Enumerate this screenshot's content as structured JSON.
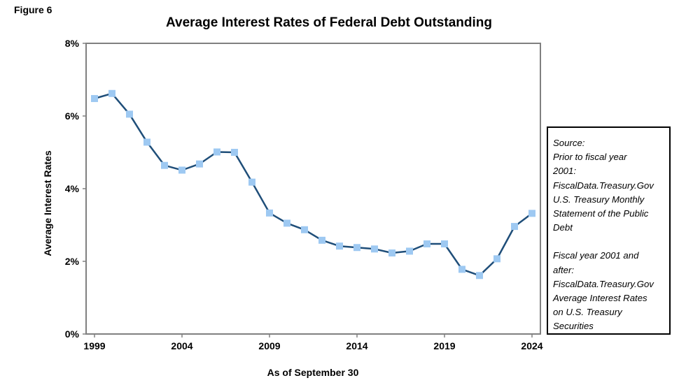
{
  "figure_label": "Figure 6",
  "source_box": {
    "lines_1": [
      "Source:",
      "Prior  to  fiscal year",
      "2001:",
      "FiscalData.Treasury.Gov",
      "U.S. Treasury Monthly",
      "Statement of the Public",
      "Debt"
    ],
    "lines_2": [
      "Fiscal year 2001 and",
      "after:",
      "FiscalData.Treasury.Gov",
      "Average Interest Rates",
      "on U.S. Treasury",
      "Securities"
    ]
  },
  "chart_data": {
    "type": "line",
    "title": "Average Interest Rates of Federal Debt Outstanding",
    "xlabel": "As of September 30",
    "ylabel": "Average Interest Rates",
    "x": [
      1999,
      2000,
      2001,
      2002,
      2003,
      2004,
      2005,
      2006,
      2007,
      2008,
      2009,
      2010,
      2011,
      2012,
      2013,
      2014,
      2015,
      2016,
      2017,
      2018,
      2019,
      2020,
      2021,
      2022,
      2023,
      2024
    ],
    "series": [
      {
        "name": "Average Interest Rate",
        "values": [
          6.48,
          6.62,
          6.05,
          5.28,
          4.64,
          4.51,
          4.68,
          5.01,
          5.0,
          4.18,
          3.33,
          3.05,
          2.87,
          2.58,
          2.42,
          2.38,
          2.34,
          2.23,
          2.28,
          2.48,
          2.48,
          1.78,
          1.61,
          2.07,
          2.96,
          3.32
        ],
        "line_color": "#1f4e79",
        "marker_color": "#9ec9f2"
      }
    ],
    "xlim": [
      1999,
      2024
    ],
    "x_ticks": [
      "1999",
      "2004",
      "2009",
      "2014",
      "2019",
      "2024"
    ],
    "ylim": [
      0,
      8
    ],
    "y_ticks": [
      "0%",
      "2%",
      "4%",
      "6%",
      "8%"
    ],
    "grid": false,
    "legend": "none"
  }
}
